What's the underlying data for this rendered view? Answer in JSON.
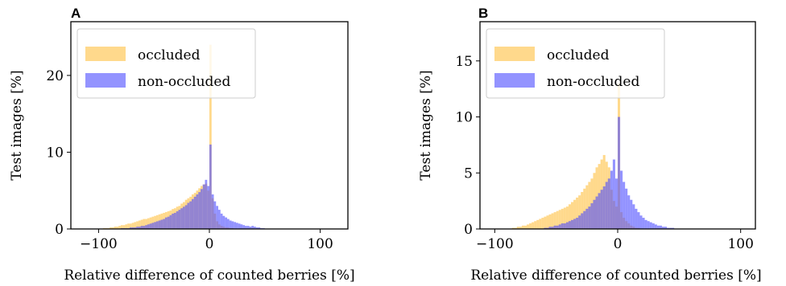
{
  "chart_data": [
    {
      "type": "histogram",
      "panel_label": "A",
      "xlabel": "Relative difference of counted berries [%]",
      "ylabel": "Test images [%]",
      "xlim": [
        -125,
        125
      ],
      "ylim": [
        0,
        27
      ],
      "xticks": [
        -100,
        0,
        100
      ],
      "xtick_labels": [
        "−100",
        "0",
        "100"
      ],
      "yticks": [
        0,
        10,
        20
      ],
      "ytick_labels": [
        "0",
        "10",
        "20"
      ],
      "grid": false,
      "legend_position": "top-left",
      "bin_width": 2,
      "series": [
        {
          "name": "occluded",
          "color": "#ffc040",
          "opacity": 0.6,
          "bins": [
            [
              -96,
              0.1
            ],
            [
              -94,
              0.1
            ],
            [
              -92,
              0.1
            ],
            [
              -90,
              0.2
            ],
            [
              -88,
              0.2
            ],
            [
              -86,
              0.3
            ],
            [
              -84,
              0.3
            ],
            [
              -82,
              0.4
            ],
            [
              -80,
              0.5
            ],
            [
              -78,
              0.5
            ],
            [
              -76,
              0.6
            ],
            [
              -74,
              0.7
            ],
            [
              -72,
              0.7
            ],
            [
              -70,
              0.8
            ],
            [
              -68,
              0.9
            ],
            [
              -66,
              1.0
            ],
            [
              -64,
              1.1
            ],
            [
              -62,
              1.2
            ],
            [
              -60,
              1.3
            ],
            [
              -58,
              1.3
            ],
            [
              -56,
              1.4
            ],
            [
              -54,
              1.5
            ],
            [
              -52,
              1.6
            ],
            [
              -50,
              1.7
            ],
            [
              -48,
              1.8
            ],
            [
              -46,
              1.9
            ],
            [
              -44,
              2.0
            ],
            [
              -42,
              2.1
            ],
            [
              -40,
              2.2
            ],
            [
              -38,
              2.3
            ],
            [
              -36,
              2.4
            ],
            [
              -34,
              2.6
            ],
            [
              -32,
              2.7
            ],
            [
              -30,
              2.9
            ],
            [
              -28,
              3.0
            ],
            [
              -26,
              3.3
            ],
            [
              -24,
              3.5
            ],
            [
              -22,
              3.8
            ],
            [
              -20,
              4.0
            ],
            [
              -18,
              4.2
            ],
            [
              -16,
              4.5
            ],
            [
              -14,
              4.7
            ],
            [
              -12,
              5.0
            ],
            [
              -10,
              5.3
            ],
            [
              -8,
              5.6
            ],
            [
              -6,
              5.8
            ],
            [
              -4,
              5.9
            ],
            [
              -2,
              5.0
            ],
            [
              0,
              24.0
            ],
            [
              2,
              4.0
            ],
            [
              4,
              2.0
            ],
            [
              6,
              1.0
            ],
            [
              8,
              0.6
            ],
            [
              10,
              0.4
            ],
            [
              12,
              0.3
            ],
            [
              14,
              0.2
            ],
            [
              16,
              0.2
            ],
            [
              18,
              0.1
            ],
            [
              20,
              0.1
            ]
          ]
        },
        {
          "name": "non-occluded",
          "color": "#4b4bff",
          "opacity": 0.6,
          "bins": [
            [
              -80,
              0.1
            ],
            [
              -78,
              0.1
            ],
            [
              -76,
              0.1
            ],
            [
              -74,
              0.1
            ],
            [
              -72,
              0.2
            ],
            [
              -70,
              0.2
            ],
            [
              -68,
              0.2
            ],
            [
              -66,
              0.3
            ],
            [
              -64,
              0.3
            ],
            [
              -62,
              0.4
            ],
            [
              -60,
              0.4
            ],
            [
              -58,
              0.5
            ],
            [
              -56,
              0.6
            ],
            [
              -54,
              0.7
            ],
            [
              -52,
              0.8
            ],
            [
              -50,
              0.9
            ],
            [
              -48,
              1.0
            ],
            [
              -46,
              1.1
            ],
            [
              -44,
              1.2
            ],
            [
              -42,
              1.3
            ],
            [
              -40,
              1.5
            ],
            [
              -38,
              1.6
            ],
            [
              -36,
              1.8
            ],
            [
              -34,
              2.0
            ],
            [
              -32,
              2.1
            ],
            [
              -30,
              2.3
            ],
            [
              -28,
              2.5
            ],
            [
              -26,
              2.7
            ],
            [
              -24,
              2.9
            ],
            [
              -22,
              3.1
            ],
            [
              -20,
              3.4
            ],
            [
              -18,
              3.6
            ],
            [
              -16,
              3.9
            ],
            [
              -14,
              4.2
            ],
            [
              -12,
              4.5
            ],
            [
              -10,
              4.8
            ],
            [
              -8,
              5.2
            ],
            [
              -6,
              5.8
            ],
            [
              -4,
              6.4
            ],
            [
              -2,
              5.6
            ],
            [
              0,
              11.0
            ],
            [
              2,
              4.5
            ],
            [
              4,
              3.6
            ],
            [
              6,
              3.0
            ],
            [
              8,
              2.5
            ],
            [
              10,
              2.0
            ],
            [
              12,
              1.7
            ],
            [
              14,
              1.5
            ],
            [
              16,
              1.3
            ],
            [
              18,
              1.1
            ],
            [
              20,
              1.0
            ],
            [
              22,
              0.9
            ],
            [
              24,
              0.8
            ],
            [
              26,
              0.7
            ],
            [
              28,
              0.6
            ],
            [
              30,
              0.5
            ],
            [
              32,
              0.4
            ],
            [
              34,
              0.4
            ],
            [
              36,
              0.3
            ],
            [
              38,
              0.4
            ],
            [
              40,
              0.3
            ],
            [
              42,
              0.2
            ],
            [
              44,
              0.2
            ],
            [
              46,
              0.1
            ],
            [
              48,
              0.1
            ]
          ]
        }
      ]
    },
    {
      "type": "histogram",
      "panel_label": "B",
      "xlabel": "Relative difference of counted berries [%]",
      "ylabel": "Test images [%]",
      "xlim": [
        -112,
        112
      ],
      "ylim": [
        0,
        18.5
      ],
      "xticks": [
        -100,
        0,
        100
      ],
      "xtick_labels": [
        "−100",
        "0",
        "100"
      ],
      "yticks": [
        0,
        5,
        10,
        15
      ],
      "ytick_labels": [
        "0",
        "5",
        "10",
        "15"
      ],
      "grid": false,
      "legend_position": "top-left",
      "bin_width": 2,
      "series": [
        {
          "name": "occluded",
          "color": "#ffc040",
          "opacity": 0.6,
          "bins": [
            [
              -86,
              0.1
            ],
            [
              -84,
              0.1
            ],
            [
              -82,
              0.2
            ],
            [
              -80,
              0.2
            ],
            [
              -78,
              0.3
            ],
            [
              -76,
              0.3
            ],
            [
              -74,
              0.4
            ],
            [
              -72,
              0.5
            ],
            [
              -70,
              0.6
            ],
            [
              -68,
              0.7
            ],
            [
              -66,
              0.8
            ],
            [
              -64,
              0.9
            ],
            [
              -62,
              1.0
            ],
            [
              -60,
              1.1
            ],
            [
              -58,
              1.2
            ],
            [
              -56,
              1.3
            ],
            [
              -54,
              1.4
            ],
            [
              -52,
              1.5
            ],
            [
              -50,
              1.6
            ],
            [
              -48,
              1.7
            ],
            [
              -46,
              1.8
            ],
            [
              -44,
              1.9
            ],
            [
              -42,
              2.0
            ],
            [
              -40,
              2.2
            ],
            [
              -38,
              2.4
            ],
            [
              -36,
              2.6
            ],
            [
              -34,
              2.8
            ],
            [
              -32,
              3.0
            ],
            [
              -30,
              3.3
            ],
            [
              -28,
              3.6
            ],
            [
              -26,
              3.9
            ],
            [
              -24,
              4.2
            ],
            [
              -22,
              4.5
            ],
            [
              -20,
              5.0
            ],
            [
              -18,
              5.5
            ],
            [
              -16,
              5.8
            ],
            [
              -14,
              6.2
            ],
            [
              -12,
              6.6
            ],
            [
              -10,
              6.0
            ],
            [
              -8,
              5.5
            ],
            [
              -6,
              3.5
            ],
            [
              -4,
              2.5
            ],
            [
              -2,
              2.0
            ],
            [
              0,
              13.0
            ],
            [
              2,
              1.5
            ],
            [
              4,
              1.0
            ],
            [
              6,
              0.7
            ],
            [
              8,
              0.5
            ],
            [
              10,
              0.3
            ],
            [
              12,
              0.2
            ],
            [
              14,
              0.1
            ],
            [
              16,
              0.1
            ]
          ]
        },
        {
          "name": "non-occluded",
          "color": "#4b4bff",
          "opacity": 0.6,
          "bins": [
            [
              -60,
              0.1
            ],
            [
              -58,
              0.1
            ],
            [
              -56,
              0.2
            ],
            [
              -54,
              0.2
            ],
            [
              -52,
              0.3
            ],
            [
              -50,
              0.3
            ],
            [
              -48,
              0.4
            ],
            [
              -46,
              0.5
            ],
            [
              -44,
              0.5
            ],
            [
              -42,
              0.6
            ],
            [
              -40,
              0.7
            ],
            [
              -38,
              0.8
            ],
            [
              -36,
              0.9
            ],
            [
              -34,
              1.0
            ],
            [
              -32,
              1.2
            ],
            [
              -30,
              1.4
            ],
            [
              -28,
              1.6
            ],
            [
              -26,
              1.8
            ],
            [
              -24,
              2.0
            ],
            [
              -22,
              2.3
            ],
            [
              -20,
              2.6
            ],
            [
              -18,
              2.9
            ],
            [
              -16,
              3.2
            ],
            [
              -14,
              3.5
            ],
            [
              -12,
              3.8
            ],
            [
              -10,
              4.2
            ],
            [
              -8,
              4.5
            ],
            [
              -6,
              5.2
            ],
            [
              -4,
              6.2
            ],
            [
              -2,
              4.5
            ],
            [
              0,
              10.0
            ],
            [
              2,
              5.2
            ],
            [
              4,
              4.2
            ],
            [
              6,
              3.6
            ],
            [
              8,
              3.0
            ],
            [
              10,
              2.6
            ],
            [
              12,
              2.2
            ],
            [
              14,
              1.8
            ],
            [
              16,
              1.5
            ],
            [
              18,
              1.2
            ],
            [
              20,
              1.0
            ],
            [
              22,
              0.8
            ],
            [
              24,
              0.7
            ],
            [
              26,
              0.6
            ],
            [
              28,
              0.5
            ],
            [
              30,
              0.4
            ],
            [
              32,
              0.3
            ],
            [
              34,
              0.3
            ],
            [
              36,
              0.2
            ],
            [
              38,
              0.2
            ],
            [
              40,
              0.1
            ],
            [
              42,
              0.1
            ],
            [
              44,
              0.1
            ]
          ]
        }
      ]
    }
  ]
}
